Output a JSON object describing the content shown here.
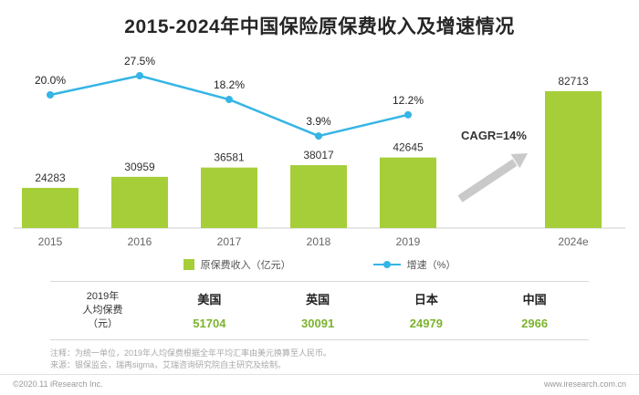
{
  "title": "2015-2024年中国保险原保费收入及增速情况",
  "chart_data": {
    "type": "bar",
    "categories": [
      "2015",
      "2016",
      "2017",
      "2018",
      "2019",
      "2024e"
    ],
    "series": [
      {
        "name": "原保费收入（亿元）",
        "type": "bar",
        "color": "#a5ce39",
        "values": [
          24283,
          30959,
          36581,
          38017,
          42645,
          82713
        ]
      },
      {
        "name": "增速（%）",
        "type": "line",
        "color": "#35b5e5",
        "values": [
          20.0,
          27.5,
          18.2,
          3.9,
          12.2,
          null
        ]
      }
    ],
    "annotation": {
      "text": "CAGR=14%"
    },
    "ylim": [
      0,
      90000
    ],
    "grid": false,
    "legend_position": "bottom",
    "value_labels": true
  },
  "legend": {
    "bar_label": "原保费收入（亿元）",
    "line_label": "增速（%）"
  },
  "table": {
    "row_label": "2019年\n人均保费\n（元）",
    "columns": [
      "美国",
      "英国",
      "日本",
      "中国"
    ],
    "values": [
      "51704",
      "30091",
      "24979",
      "2966"
    ]
  },
  "notes": [
    "注释：为统一单位，2019年人均保费根据全年平均汇率由美元换算至人民币。",
    "来源：银保监会，瑞再sigma，艾瑞咨询研究院自主研究及绘制。"
  ],
  "footer": {
    "left": "©2020.11 iResearch Inc.",
    "right": "www.iresearch.com.cn"
  }
}
